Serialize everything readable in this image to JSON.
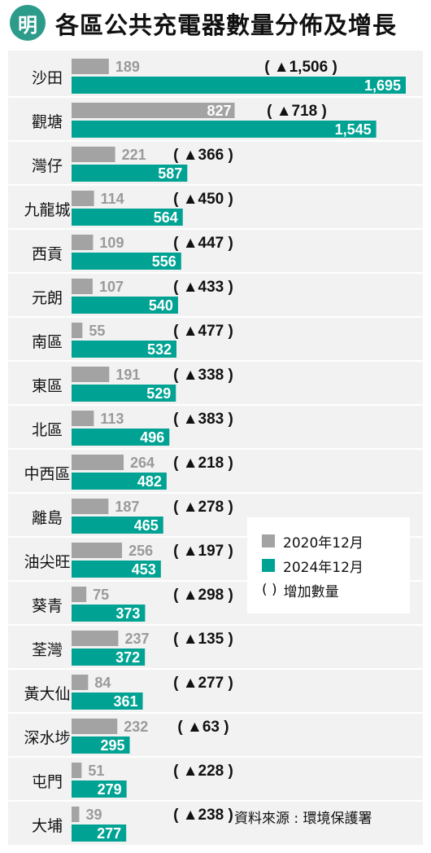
{
  "header": {
    "logo_char": "明",
    "title": "各區公共充電器數量分佈及增長"
  },
  "chart_data": {
    "type": "bar",
    "orientation": "horizontal",
    "title": "各區公共充電器數量分佈及增長",
    "categories": [
      "沙田",
      "觀塘",
      "灣仔",
      "九龍城",
      "西貢",
      "元朗",
      "南區",
      "東區",
      "北區",
      "中西區",
      "離島",
      "油尖旺",
      "葵青",
      "荃灣",
      "黃大仙",
      "深水埗",
      "屯門",
      "大埔"
    ],
    "series": [
      {
        "name": "2020年12月",
        "color": "#a3a3a3",
        "values": [
          189,
          827,
          221,
          114,
          109,
          107,
          55,
          191,
          113,
          264,
          187,
          256,
          75,
          237,
          84,
          232,
          51,
          39
        ]
      },
      {
        "name": "2024年12月",
        "color": "#00a393",
        "values": [
          1695,
          1545,
          587,
          564,
          556,
          540,
          532,
          529,
          496,
          482,
          465,
          453,
          373,
          372,
          361,
          295,
          279,
          277
        ]
      }
    ],
    "increase": {
      "name": "增加數量",
      "labels": [
        "1,506",
        "718",
        "366",
        "450",
        "447",
        "433",
        "477",
        "338",
        "383",
        "218",
        "278",
        "197",
        "298",
        "135",
        "277",
        "63",
        "228",
        "238"
      ]
    },
    "value_labels": {
      "old": [
        "189",
        "827",
        "221",
        "114",
        "109",
        "107",
        "55",
        "191",
        "113",
        "264",
        "187",
        "256",
        "75",
        "237",
        "84",
        "232",
        "51",
        "39"
      ],
      "new": [
        "1,695",
        "1,545",
        "587",
        "564",
        "556",
        "540",
        "532",
        "529",
        "496",
        "482",
        "465",
        "453",
        "373",
        "372",
        "361",
        "295",
        "279",
        "277"
      ]
    },
    "xlim": [
      0,
      1695
    ],
    "grid": false,
    "legend": "middle-right"
  },
  "legend": {
    "old_label": "2020年12月",
    "new_label": "2024年12月",
    "paren_symbol": "( )",
    "paren_label": "增加數量"
  },
  "source": "資料來源 : 環境保護署"
}
